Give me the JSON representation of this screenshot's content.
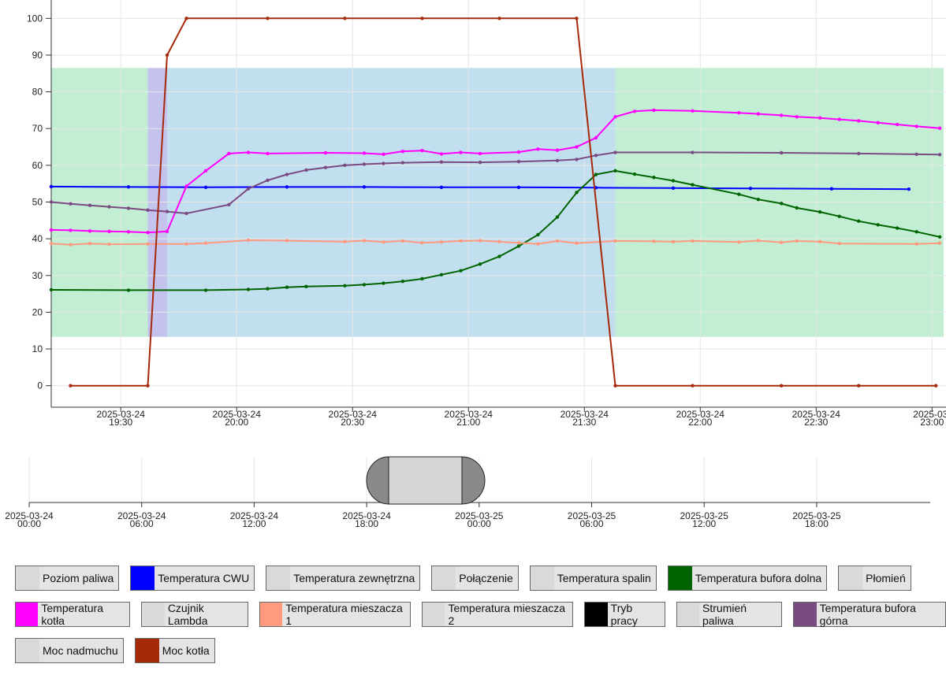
{
  "chart_data": {
    "type": "line",
    "xlim": [
      "2025-03-24T19:12",
      "2025-03-24T23:03"
    ],
    "ylim": [
      -5,
      105
    ],
    "yticks": [
      0,
      10,
      20,
      30,
      40,
      50,
      60,
      70,
      80,
      90,
      100
    ],
    "xticks": [
      {
        "value": "2025-03-24T19:30",
        "label": [
          "2025-03-24",
          "19:30"
        ]
      },
      {
        "value": "2025-03-24T20:00",
        "label": [
          "2025-03-24",
          "20:00"
        ]
      },
      {
        "value": "2025-03-24T20:30",
        "label": [
          "2025-03-24",
          "20:30"
        ]
      },
      {
        "value": "2025-03-24T21:00",
        "label": [
          "2025-03-24",
          "21:00"
        ]
      },
      {
        "value": "2025-03-24T21:30",
        "label": [
          "2025-03-24",
          "21:30"
        ]
      },
      {
        "value": "2025-03-24T22:00",
        "label": [
          "2025-03-24",
          "22:00"
        ]
      },
      {
        "value": "2025-03-24T22:30",
        "label": [
          "2025-03-24",
          "22:30"
        ]
      },
      {
        "value": "2025-03-24T23:00",
        "label": [
          "2025-03-",
          "23:00"
        ]
      }
    ],
    "grid": true,
    "bands": [
      {
        "from": "2025-03-24T19:12",
        "to": "2025-03-24T19:37",
        "low": 13.3,
        "high": 86.5,
        "color": "#c2efd3"
      },
      {
        "from": "2025-03-24T19:37",
        "to": "2025-03-24T19:42",
        "low": 13.3,
        "high": 86.5,
        "color": "#c3c3ee"
      },
      {
        "from": "2025-03-24T19:42",
        "to": "2025-03-24T21:38",
        "low": 13.3,
        "high": 86.5,
        "color": "#c2dff0"
      },
      {
        "from": "2025-03-24T21:38",
        "to": "2025-03-24T23:03",
        "low": 13.3,
        "high": 86.5,
        "color": "#c2efd3"
      }
    ],
    "series": [
      {
        "name": "Poziom paliwa",
        "color": "#d9d9d9",
        "visible": false
      },
      {
        "name": "Temperatura CWU",
        "color": "#0000ff",
        "visible": true,
        "x": [
          "2025-03-24T19:12",
          "2025-03-24T19:32",
          "2025-03-24T19:52",
          "2025-03-24T20:13",
          "2025-03-24T20:33",
          "2025-03-24T20:53",
          "2025-03-24T21:13",
          "2025-03-24T21:33",
          "2025-03-24T21:53",
          "2025-03-24T22:13",
          "2025-03-24T22:34",
          "2025-03-24T22:54"
        ],
        "values": [
          54.2,
          54.1,
          54.0,
          54.1,
          54.1,
          54.0,
          54.0,
          53.9,
          53.8,
          53.7,
          53.6,
          53.5
        ]
      },
      {
        "name": "Temperatura zewnętrzna",
        "color": "#d9d9d9",
        "visible": false
      },
      {
        "name": "Połączenie",
        "color": "#d9d9d9",
        "visible": false
      },
      {
        "name": "Temperatura spalin",
        "color": "#d9d9d9",
        "visible": false
      },
      {
        "name": "Temperatura bufora dolna",
        "color": "#006400",
        "visible": true,
        "x": [
          "2025-03-24T19:12",
          "2025-03-24T19:32",
          "2025-03-24T19:52",
          "2025-03-24T20:03",
          "2025-03-24T20:08",
          "2025-03-24T20:13",
          "2025-03-24T20:18",
          "2025-03-24T20:28",
          "2025-03-24T20:33",
          "2025-03-24T20:38",
          "2025-03-24T20:43",
          "2025-03-24T20:48",
          "2025-03-24T20:53",
          "2025-03-24T20:58",
          "2025-03-24T21:03",
          "2025-03-24T21:08",
          "2025-03-24T21:13",
          "2025-03-24T21:18",
          "2025-03-24T21:23",
          "2025-03-24T21:28",
          "2025-03-24T21:33",
          "2025-03-24T21:38",
          "2025-03-24T21:43",
          "2025-03-24T21:48",
          "2025-03-24T21:53",
          "2025-03-24T21:58",
          "2025-03-24T22:10",
          "2025-03-24T22:15",
          "2025-03-24T22:21",
          "2025-03-24T22:25",
          "2025-03-24T22:31",
          "2025-03-24T22:36",
          "2025-03-24T22:41",
          "2025-03-24T22:46",
          "2025-03-24T22:51",
          "2025-03-24T22:56",
          "2025-03-24T23:02"
        ],
        "values": [
          26.1,
          26.0,
          26.0,
          26.2,
          26.4,
          26.8,
          27.0,
          27.2,
          27.5,
          27.9,
          28.4,
          29.1,
          30.2,
          31.3,
          33.1,
          35.2,
          38.0,
          41.1,
          45.9,
          52.6,
          57.5,
          58.5,
          57.6,
          56.7,
          55.8,
          54.7,
          52.1,
          50.7,
          49.6,
          48.4,
          47.3,
          46.1,
          44.8,
          43.8,
          42.9,
          41.9,
          40.5
        ]
      },
      {
        "name": "Płomień",
        "color": "#d9d9d9",
        "visible": false
      },
      {
        "name": "Temperatura kotła",
        "color": "#ff00ff",
        "visible": true,
        "x": [
          "2025-03-24T19:12",
          "2025-03-24T19:17",
          "2025-03-24T19:22",
          "2025-03-24T19:27",
          "2025-03-24T19:32",
          "2025-03-24T19:37",
          "2025-03-24T19:42",
          "2025-03-24T19:47",
          "2025-03-24T19:52",
          "2025-03-24T19:58",
          "2025-03-24T20:03",
          "2025-03-24T20:08",
          "2025-03-24T20:23",
          "2025-03-24T20:33",
          "2025-03-24T20:38",
          "2025-03-24T20:43",
          "2025-03-24T20:48",
          "2025-03-24T20:53",
          "2025-03-24T20:58",
          "2025-03-24T21:03",
          "2025-03-24T21:13",
          "2025-03-24T21:18",
          "2025-03-24T21:23",
          "2025-03-24T21:28",
          "2025-03-24T21:33",
          "2025-03-24T21:38",
          "2025-03-24T21:43",
          "2025-03-24T21:48",
          "2025-03-24T21:58",
          "2025-03-24T22:10",
          "2025-03-24T22:15",
          "2025-03-24T22:21",
          "2025-03-24T22:25",
          "2025-03-24T22:31",
          "2025-03-24T22:36",
          "2025-03-24T22:41",
          "2025-03-24T22:46",
          "2025-03-24T22:51",
          "2025-03-24T22:56",
          "2025-03-24T23:02"
        ],
        "values": [
          42.4,
          42.3,
          42.1,
          42.0,
          41.9,
          41.7,
          42.0,
          54.3,
          58.5,
          63.2,
          63.5,
          63.2,
          63.4,
          63.3,
          63.0,
          63.8,
          64.0,
          63.1,
          63.5,
          63.2,
          63.6,
          64.4,
          64.1,
          65.0,
          67.5,
          73.2,
          74.7,
          75.0,
          74.8,
          74.3,
          74.0,
          73.6,
          73.2,
          72.9,
          72.5,
          72.1,
          71.6,
          71.1,
          70.6,
          70.1
        ]
      },
      {
        "name": "Czujnik Lambda",
        "color": "#d9d9d9",
        "visible": false
      },
      {
        "name": "Temperatura mieszacza 1",
        "color": "#ff9a7f",
        "visible": true,
        "x": [
          "2025-03-24T19:12",
          "2025-03-24T19:17",
          "2025-03-24T19:22",
          "2025-03-24T19:27",
          "2025-03-24T19:37",
          "2025-03-24T19:47",
          "2025-03-24T19:52",
          "2025-03-24T20:03",
          "2025-03-24T20:13",
          "2025-03-24T20:28",
          "2025-03-24T20:33",
          "2025-03-24T20:38",
          "2025-03-24T20:43",
          "2025-03-24T20:48",
          "2025-03-24T20:53",
          "2025-03-24T20:58",
          "2025-03-24T21:03",
          "2025-03-24T21:08",
          "2025-03-24T21:13",
          "2025-03-24T21:18",
          "2025-03-24T21:23",
          "2025-03-24T21:28",
          "2025-03-24T21:38",
          "2025-03-24T21:48",
          "2025-03-24T21:53",
          "2025-03-24T21:58",
          "2025-03-24T22:10",
          "2025-03-24T22:15",
          "2025-03-24T22:21",
          "2025-03-24T22:25",
          "2025-03-24T22:31",
          "2025-03-24T22:36",
          "2025-03-24T22:56",
          "2025-03-24T23:02"
        ],
        "values": [
          38.7,
          38.4,
          38.7,
          38.5,
          38.6,
          38.6,
          38.8,
          39.6,
          39.5,
          39.2,
          39.5,
          39.1,
          39.4,
          38.9,
          39.1,
          39.4,
          39.5,
          39.2,
          38.9,
          38.6,
          39.4,
          38.8,
          39.4,
          39.3,
          39.2,
          39.4,
          39.1,
          39.5,
          39.0,
          39.4,
          39.2,
          38.7,
          38.6,
          38.8
        ]
      },
      {
        "name": "Temperatura mieszacza 2",
        "color": "#d9d9d9",
        "visible": false
      },
      {
        "name": "Tryb pracy",
        "color": "#000000",
        "visible": false
      },
      {
        "name": "Strumień paliwa",
        "color": "#d9d9d9",
        "visible": false
      },
      {
        "name": "Temperatura bufora górna",
        "color": "#7a4b82",
        "visible": true,
        "x": [
          "2025-03-24T19:12",
          "2025-03-24T19:17",
          "2025-03-24T19:22",
          "2025-03-24T19:27",
          "2025-03-24T19:32",
          "2025-03-24T19:37",
          "2025-03-24T19:42",
          "2025-03-24T19:47",
          "2025-03-24T19:58",
          "2025-03-24T20:03",
          "2025-03-24T20:08",
          "2025-03-24T20:13",
          "2025-03-24T20:18",
          "2025-03-24T20:23",
          "2025-03-24T20:28",
          "2025-03-24T20:33",
          "2025-03-24T20:38",
          "2025-03-24T20:43",
          "2025-03-24T20:53",
          "2025-03-24T21:03",
          "2025-03-24T21:13",
          "2025-03-24T21:23",
          "2025-03-24T21:28",
          "2025-03-24T21:33",
          "2025-03-24T21:38",
          "2025-03-24T21:58",
          "2025-03-24T22:21",
          "2025-03-24T22:41",
          "2025-03-24T22:56",
          "2025-03-24T23:02"
        ],
        "values": [
          50.0,
          49.5,
          49.1,
          48.7,
          48.3,
          47.8,
          47.4,
          46.9,
          49.3,
          53.6,
          55.9,
          57.5,
          58.7,
          59.4,
          60.0,
          60.3,
          60.5,
          60.7,
          60.9,
          60.8,
          61.0,
          61.3,
          61.6,
          62.7,
          63.5,
          63.5,
          63.4,
          63.2,
          63.0,
          62.9
        ]
      },
      {
        "name": "Moc nadmuchu",
        "color": "#d9d9d9",
        "visible": false
      },
      {
        "name": "Moc kotła",
        "color": "#a52a0a",
        "visible": true,
        "x": [
          "2025-03-24T19:17",
          "2025-03-24T19:37",
          "2025-03-24T19:42",
          "2025-03-24T19:47",
          "2025-03-24T20:08",
          "2025-03-24T20:28",
          "2025-03-24T20:48",
          "2025-03-24T21:08",
          "2025-03-24T21:28",
          "2025-03-24T21:38",
          "2025-03-24T21:58",
          "2025-03-24T22:21",
          "2025-03-24T22:41",
          "2025-03-24T23:01"
        ],
        "values": [
          0,
          0,
          90,
          100,
          100,
          100,
          100,
          100,
          100,
          0,
          0,
          0,
          0,
          0
        ]
      }
    ]
  },
  "navigator": {
    "ticks": [
      [
        "2025-03-24",
        "00:00"
      ],
      [
        "2025-03-24",
        "06:00"
      ],
      [
        "2025-03-24",
        "12:00"
      ],
      [
        "2025-03-24",
        "18:00"
      ],
      [
        "2025-03-25",
        "00:00"
      ],
      [
        "2025-03-25",
        "06:00"
      ],
      [
        "2025-03-25",
        "12:00"
      ],
      [
        "2025-03-25",
        "18:00"
      ]
    ]
  }
}
